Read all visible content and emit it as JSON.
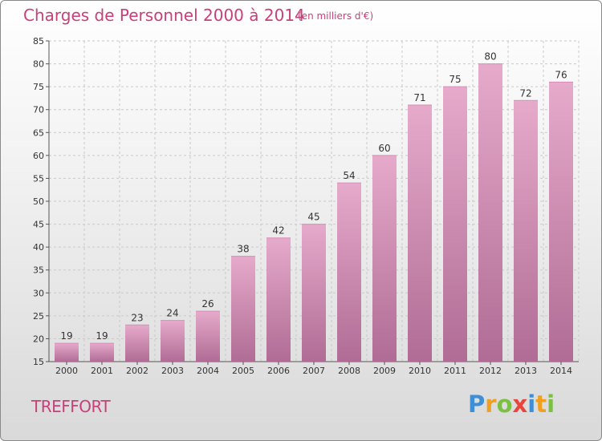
{
  "chart_data": {
    "type": "bar",
    "title": "Charges de Personnel 2000 à 2014",
    "subtitle": "(en milliers d'€)",
    "categories": [
      "2000",
      "2001",
      "2002",
      "2003",
      "2004",
      "2005",
      "2006",
      "2007",
      "2008",
      "2009",
      "2010",
      "2011",
      "2012",
      "2013",
      "2014"
    ],
    "values": [
      19,
      19,
      23,
      24,
      26,
      38,
      42,
      45,
      54,
      60,
      71,
      75,
      80,
      72,
      76
    ],
    "ylim": [
      15,
      85
    ],
    "yticks": [
      15,
      20,
      25,
      30,
      35,
      40,
      45,
      50,
      55,
      60,
      65,
      70,
      75,
      80,
      85
    ],
    "grid": true,
    "xlabel": "",
    "ylabel": ""
  },
  "commune": "TREFFORT",
  "logo": {
    "letters": [
      "P",
      "r",
      "o",
      "x",
      "i",
      "t",
      "i"
    ],
    "colors": [
      "#3f8fd6",
      "#f0a020",
      "#7bc043",
      "#e8453c",
      "#3f8fd6",
      "#f0a020",
      "#7bc043"
    ]
  },
  "colors": {
    "title": "#c8407a",
    "bar_top": "#e6aacb",
    "bar_bottom": "#b06c95",
    "grid": "#c9c9c9",
    "axis": "#555555"
  }
}
